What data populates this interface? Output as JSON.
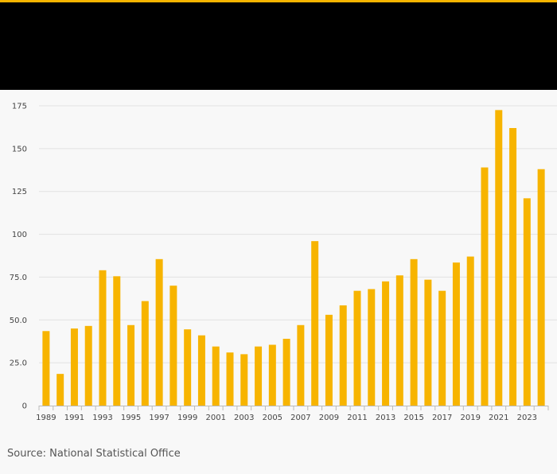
{
  "header": {
    "accent_color": "#f7b400",
    "band_color": "#000000"
  },
  "source": "Source: National Statistical Office",
  "chart_data": {
    "type": "bar",
    "bar_color": "#f7b400",
    "years": [
      1989,
      1990,
      1991,
      1992,
      1993,
      1994,
      1995,
      1996,
      1997,
      1998,
      1999,
      2000,
      2001,
      2002,
      2003,
      2004,
      2005,
      2006,
      2007,
      2008,
      2009,
      2010,
      2011,
      2012,
      2013,
      2014,
      2015,
      2016,
      2017,
      2018,
      2019,
      2020,
      2021,
      2022,
      2023,
      2024
    ],
    "values": [
      43.5,
      18.5,
      45,
      46.5,
      79,
      75.5,
      47,
      61,
      85.5,
      70,
      44.5,
      41,
      34.5,
      31,
      30,
      34.5,
      35.5,
      39,
      47,
      96,
      53,
      58.5,
      67,
      68,
      72.5,
      76,
      85.5,
      73.5,
      67,
      83.5,
      87,
      139,
      172.5,
      162,
      121,
      138
    ],
    "x_tick_labels": [
      "1989",
      "1991",
      "1993",
      "1995",
      "1997",
      "1999",
      "2001",
      "2003",
      "2005",
      "2007",
      "2009",
      "2011",
      "2013",
      "2015",
      "2017",
      "2019",
      "2021",
      "2023"
    ],
    "y_tick_labels": [
      "0",
      "25.0",
      "50.0",
      "75.0",
      "100",
      "125",
      "150",
      "175"
    ],
    "y_ticks": [
      0,
      25,
      50,
      75,
      100,
      125,
      150,
      175
    ],
    "ylim": [
      0,
      175
    ],
    "grid": true,
    "title": "",
    "xlabel": "",
    "ylabel": ""
  }
}
